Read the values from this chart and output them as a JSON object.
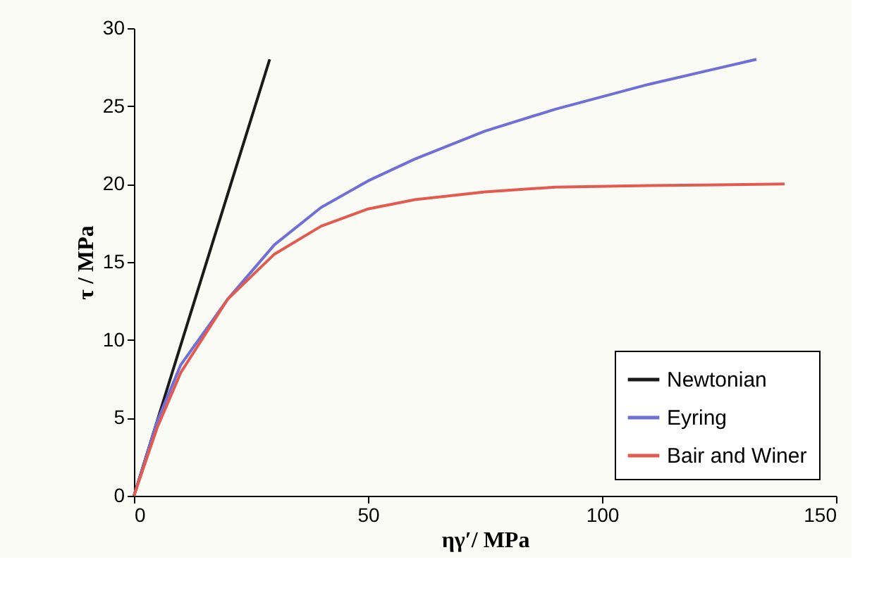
{
  "chart_data": {
    "type": "line",
    "xlabel": "ηγ′/ MPa",
    "ylabel": "τ / MPa",
    "xlim": [
      0,
      150
    ],
    "xticks": [
      0,
      50,
      100,
      150
    ],
    "ylim": [
      0,
      30
    ],
    "yticks": [
      0,
      5,
      10,
      15,
      20,
      25,
      30
    ],
    "grid": false,
    "legend": "bottom right",
    "marker": "none",
    "line_style": "solid",
    "series": [
      {
        "name": "Newtonian",
        "color": "#1a1a1a",
        "x": [
          0,
          15,
          29
        ],
        "values": [
          0,
          14.5,
          28
        ]
      },
      {
        "name": "Eyring",
        "color": "#6f6fd6",
        "x": [
          0,
          5,
          10,
          20,
          30,
          40,
          50,
          60,
          75,
          90,
          110,
          133
        ],
        "values": [
          0,
          4.8,
          8.4,
          12.6,
          16.1,
          18.5,
          20.2,
          21.6,
          23.4,
          24.8,
          26.4,
          28
        ]
      },
      {
        "name": "Bair and Winer",
        "color": "#e25a50",
        "x": [
          0,
          5,
          10,
          20,
          30,
          40,
          50,
          60,
          75,
          90,
          110,
          139
        ],
        "values": [
          0,
          4.4,
          7.9,
          12.6,
          15.5,
          17.3,
          18.4,
          19.0,
          19.5,
          19.8,
          19.9,
          20.0
        ]
      }
    ]
  }
}
